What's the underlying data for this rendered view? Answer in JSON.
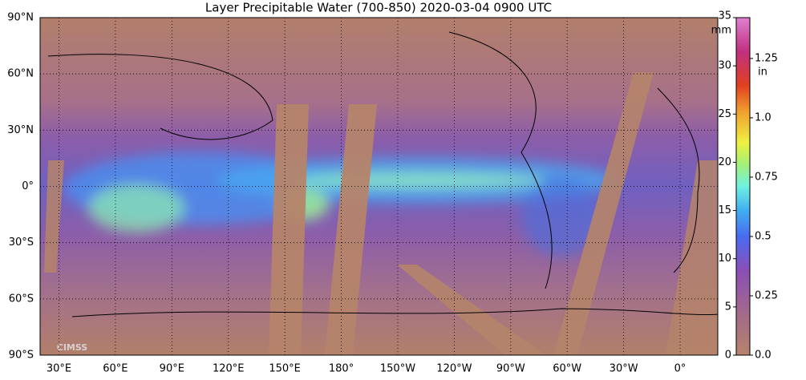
{
  "title": "Layer Precipitable Water (700-850)  2020-03-04 0900 UTC",
  "map": {
    "xlim": [
      20,
      380
    ],
    "ylim": [
      -90,
      90
    ],
    "lat_ticks": [
      {
        "value": 90,
        "label": "90°N"
      },
      {
        "value": 60,
        "label": "60°N"
      },
      {
        "value": 30,
        "label": "30°N"
      },
      {
        "value": 0,
        "label": "0°"
      },
      {
        "value": -30,
        "label": "30°S"
      },
      {
        "value": -60,
        "label": "60°S"
      },
      {
        "value": -90,
        "label": "90°S"
      }
    ],
    "lon_ticks": [
      {
        "value": 30,
        "label": "30°E"
      },
      {
        "value": 60,
        "label": "60°E"
      },
      {
        "value": 90,
        "label": "90°E"
      },
      {
        "value": 120,
        "label": "120°E"
      },
      {
        "value": 150,
        "label": "150°E"
      },
      {
        "value": 180,
        "label": "180°"
      },
      {
        "value": 210,
        "label": "150°W"
      },
      {
        "value": 240,
        "label": "120°W"
      },
      {
        "value": 270,
        "label": "90°W"
      },
      {
        "value": 300,
        "label": "60°W"
      },
      {
        "value": 330,
        "label": "30°W"
      },
      {
        "value": 360,
        "label": "0°"
      }
    ]
  },
  "colorbar": {
    "mm_unit": "mm",
    "in_unit": "in",
    "mm_lim": [
      0,
      35
    ],
    "mm_ticks": [
      0,
      5,
      10,
      15,
      20,
      25,
      30,
      35
    ],
    "in_lim": [
      0,
      1.422
    ],
    "in_ticks": [
      {
        "value": 0,
        "label": "0.0"
      },
      0.25,
      0.5,
      0.75,
      {
        "value": 1,
        "label": "1.0"
      },
      1.25
    ]
  },
  "logo": "CIMSS"
}
